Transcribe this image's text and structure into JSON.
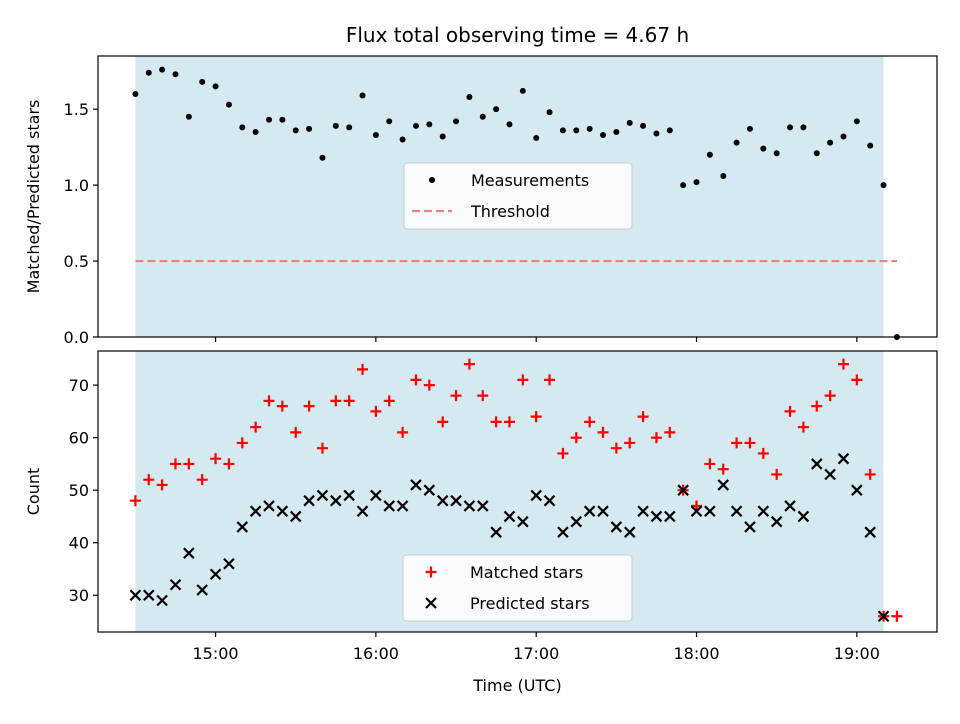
{
  "colors": {
    "observing_band": "#d4eaf0",
    "measurement": "#000000",
    "threshold": "#f08080",
    "matched": "#ff0000",
    "predicted": "#000000"
  },
  "chart_data": [
    {
      "type": "scatter",
      "title": "Flux total observing time = 4.67 h",
      "xlabel": "",
      "ylabel": "Matched/Predicted stars",
      "xlim": [
        "14:16",
        "19:30"
      ],
      "ylim": [
        0,
        1.85
      ],
      "yticks": [
        0.0,
        0.5,
        1.0,
        1.5
      ],
      "ytick_labels": [
        "0.0",
        "0.5",
        "1.0",
        "1.5"
      ],
      "xticks": [
        "15:00",
        "16:00",
        "17:00",
        "18:00",
        "19:00"
      ],
      "observing_window": [
        "14:30",
        "19:10"
      ],
      "legend_position": "center",
      "series": [
        {
          "name": "Measurements",
          "marker": "dot",
          "x": [
            "14:30",
            "14:35",
            "14:40",
            "14:45",
            "14:50",
            "14:55",
            "15:00",
            "15:05",
            "15:10",
            "15:15",
            "15:20",
            "15:25",
            "15:30",
            "15:35",
            "15:40",
            "15:45",
            "15:50",
            "15:55",
            "16:00",
            "16:05",
            "16:10",
            "16:15",
            "16:20",
            "16:25",
            "16:30",
            "16:35",
            "16:40",
            "16:45",
            "16:50",
            "16:55",
            "17:00",
            "17:05",
            "17:10",
            "17:15",
            "17:20",
            "17:25",
            "17:30",
            "17:35",
            "17:40",
            "17:45",
            "17:50",
            "17:55",
            "18:00",
            "18:05",
            "18:10",
            "18:15",
            "18:20",
            "18:25",
            "18:30",
            "18:35",
            "18:40",
            "18:45",
            "18:50",
            "18:55",
            "19:00",
            "19:05",
            "19:10",
            "19:15"
          ],
          "y": [
            1.6,
            1.74,
            1.76,
            1.73,
            1.45,
            1.68,
            1.65,
            1.53,
            1.38,
            1.35,
            1.43,
            1.43,
            1.36,
            1.37,
            1.18,
            1.39,
            1.38,
            1.59,
            1.33,
            1.42,
            1.3,
            1.39,
            1.4,
            1.32,
            1.42,
            1.58,
            1.45,
            1.5,
            1.4,
            1.62,
            1.31,
            1.48,
            1.36,
            1.36,
            1.37,
            1.33,
            1.35,
            1.41,
            1.39,
            1.34,
            1.36,
            1.0,
            1.02,
            1.2,
            1.06,
            1.28,
            1.37,
            1.24,
            1.21,
            1.38,
            1.38,
            1.21,
            1.28,
            1.32,
            1.42,
            1.26,
            1.0,
            0.0
          ]
        },
        {
          "name": "Threshold",
          "style": "dashed",
          "x": [
            "14:30",
            "19:15"
          ],
          "y": [
            0.5,
            0.5
          ]
        }
      ]
    },
    {
      "type": "scatter",
      "title": "",
      "xlabel": "Time (UTC)",
      "ylabel": "Count",
      "xlim": [
        "14:16",
        "19:30"
      ],
      "ylim": [
        23,
        76.5
      ],
      "yticks": [
        30,
        40,
        50,
        60,
        70
      ],
      "ytick_labels": [
        "30",
        "40",
        "50",
        "60",
        "70"
      ],
      "xticks": [
        "15:00",
        "16:00",
        "17:00",
        "18:00",
        "19:00"
      ],
      "observing_window": [
        "14:30",
        "19:10"
      ],
      "legend_position": "lower center",
      "series": [
        {
          "name": "Matched stars",
          "marker": "plus",
          "x": [
            "14:30",
            "14:35",
            "14:40",
            "14:45",
            "14:50",
            "14:55",
            "15:00",
            "15:05",
            "15:10",
            "15:15",
            "15:20",
            "15:25",
            "15:30",
            "15:35",
            "15:40",
            "15:45",
            "15:50",
            "15:55",
            "16:00",
            "16:05",
            "16:10",
            "16:15",
            "16:20",
            "16:25",
            "16:30",
            "16:35",
            "16:40",
            "16:45",
            "16:50",
            "16:55",
            "17:00",
            "17:05",
            "17:10",
            "17:15",
            "17:20",
            "17:25",
            "17:30",
            "17:35",
            "17:40",
            "17:45",
            "17:50",
            "17:55",
            "18:00",
            "18:05",
            "18:10",
            "18:15",
            "18:20",
            "18:25",
            "18:30",
            "18:35",
            "18:40",
            "18:45",
            "18:50",
            "18:55",
            "19:00",
            "19:05",
            "19:10",
            "19:15"
          ],
          "y": [
            48,
            52,
            51,
            55,
            55,
            52,
            56,
            55,
            59,
            62,
            67,
            66,
            61,
            66,
            58,
            67,
            67,
            73,
            65,
            67,
            61,
            71,
            70,
            63,
            68,
            74,
            68,
            63,
            63,
            71,
            64,
            71,
            57,
            60,
            63,
            61,
            58,
            59,
            64,
            60,
            61,
            50,
            47,
            55,
            54,
            59,
            59,
            57,
            53,
            65,
            62,
            66,
            68,
            74,
            71,
            53,
            26,
            26
          ]
        },
        {
          "name": "Predicted stars",
          "marker": "x",
          "x": [
            "14:30",
            "14:35",
            "14:40",
            "14:45",
            "14:50",
            "14:55",
            "15:00",
            "15:05",
            "15:10",
            "15:15",
            "15:20",
            "15:25",
            "15:30",
            "15:35",
            "15:40",
            "15:45",
            "15:50",
            "15:55",
            "16:00",
            "16:05",
            "16:10",
            "16:15",
            "16:20",
            "16:25",
            "16:30",
            "16:35",
            "16:40",
            "16:45",
            "16:50",
            "16:55",
            "17:00",
            "17:05",
            "17:10",
            "17:15",
            "17:20",
            "17:25",
            "17:30",
            "17:35",
            "17:40",
            "17:45",
            "17:50",
            "17:55",
            "18:00",
            "18:05",
            "18:10",
            "18:15",
            "18:20",
            "18:25",
            "18:30",
            "18:35",
            "18:40",
            "18:45",
            "18:50",
            "18:55",
            "19:00",
            "19:05",
            "19:10"
          ],
          "y": [
            30,
            30,
            29,
            32,
            38,
            31,
            34,
            36,
            43,
            46,
            47,
            46,
            45,
            48,
            49,
            48,
            49,
            46,
            49,
            47,
            47,
            51,
            50,
            48,
            48,
            47,
            47,
            42,
            45,
            44,
            49,
            48,
            42,
            44,
            46,
            46,
            43,
            42,
            46,
            45,
            45,
            50,
            46,
            46,
            51,
            46,
            43,
            46,
            44,
            47,
            45,
            55,
            53,
            56,
            50,
            42,
            26
          ]
        }
      ]
    }
  ]
}
